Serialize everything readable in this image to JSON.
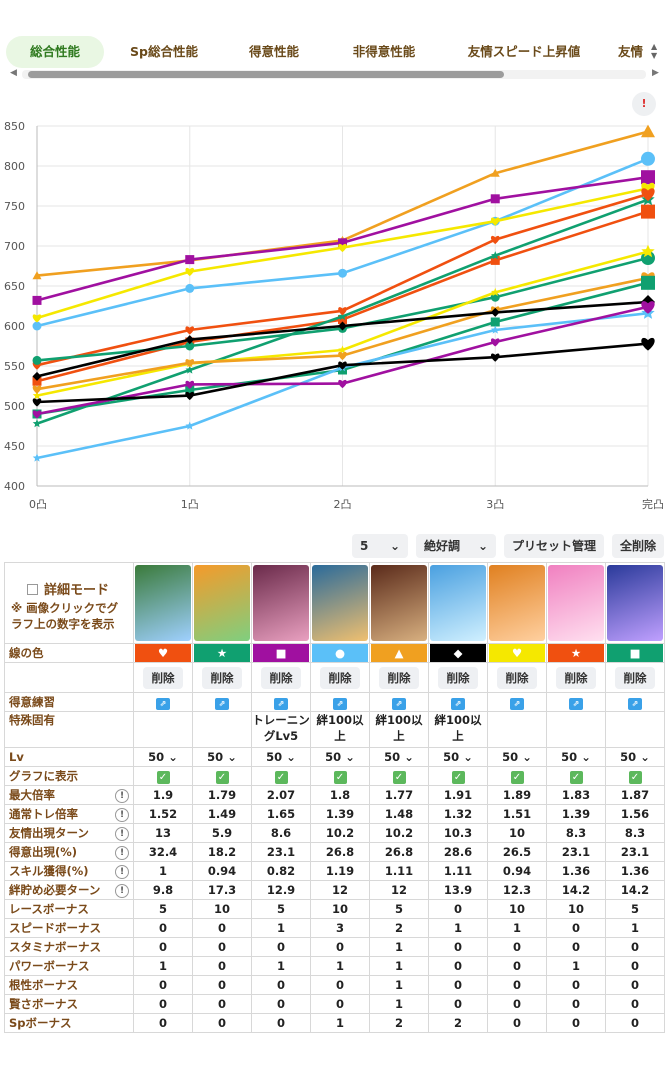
{
  "tabs": [
    "総合性能",
    "Sp総合性能",
    "得意性能",
    "非得意性能",
    "友情スピード上昇値",
    "友情"
  ],
  "tabs_more_icon": "chevron-updown-icon",
  "info_button_label": "!",
  "chart_data": {
    "type": "line",
    "x": [
      "0凸",
      "1凸",
      "2凸",
      "3凸",
      "完凸"
    ],
    "ylim": [
      400,
      850
    ],
    "yticks": [
      400,
      450,
      500,
      550,
      600,
      650,
      700,
      750,
      800,
      850
    ],
    "grid": true,
    "series": [
      {
        "color": "#f0a020",
        "marker": "triangle",
        "values": [
          663,
          682,
          707,
          791,
          843
        ]
      },
      {
        "color": "#5bc0f8",
        "marker": "circle",
        "values": [
          600,
          647,
          666,
          731,
          809
        ]
      },
      {
        "color": "#a010a0",
        "marker": "square",
        "values": [
          632,
          683,
          704,
          759,
          786
        ]
      },
      {
        "color": "#f5e800",
        "marker": "heart",
        "values": [
          610,
          668,
          698,
          731,
          772
        ]
      },
      {
        "color": "#f05010",
        "marker": "square",
        "values": [
          531,
          580,
          608,
          682,
          743
        ]
      },
      {
        "color": "#10a070",
        "marker": "star",
        "values": [
          478,
          545,
          612,
          688,
          758
        ]
      },
      {
        "color": "#f05010",
        "marker": "heart",
        "values": [
          551,
          595,
          619,
          708,
          765
        ]
      },
      {
        "color": "#10a070",
        "marker": "circle",
        "values": [
          557,
          575,
          597,
          636,
          685
        ]
      },
      {
        "color": "#f5e800",
        "marker": "star",
        "values": [
          513,
          553,
          570,
          642,
          693
        ]
      },
      {
        "color": "#f0a020",
        "marker": "heart",
        "values": [
          521,
          554,
          563,
          620,
          660
        ]
      },
      {
        "color": "#10a070",
        "marker": "square",
        "values": [
          490,
          520,
          545,
          605,
          654
        ]
      },
      {
        "color": "#000000",
        "marker": "diamond",
        "values": [
          537,
          583,
          600,
          617,
          630
        ]
      },
      {
        "color": "#5bc0f8",
        "marker": "star",
        "values": [
          435,
          475,
          548,
          595,
          616
        ]
      },
      {
        "color": "#a010a0",
        "marker": "heart",
        "values": [
          490,
          527,
          528,
          580,
          624
        ]
      },
      {
        "color": "#000000",
        "marker": "heart",
        "values": [
          505,
          513,
          551,
          561,
          578
        ]
      }
    ]
  },
  "controls": {
    "count": "5",
    "mode": "絶好調",
    "preset": "プリセット管理",
    "delete_all": "全削除"
  },
  "table": {
    "mode_label": "詳細モード",
    "mode_note": "※ 画像クリックでグラフ上の数字を表示",
    "cards": [
      {
        "grad": [
          "#3a7a3a",
          "#9fd0ff"
        ]
      },
      {
        "grad": [
          "#f59a2a",
          "#7fcf7f"
        ]
      },
      {
        "grad": [
          "#6a2a4a",
          "#e9a0c0"
        ]
      },
      {
        "grad": [
          "#2a6a9a",
          "#f0c070"
        ]
      },
      {
        "grad": [
          "#5a2a1a",
          "#d8b080"
        ]
      },
      {
        "grad": [
          "#4aa0e0",
          "#d0f0ff"
        ]
      },
      {
        "grad": [
          "#e08020",
          "#ffd0a0"
        ]
      },
      {
        "grad": [
          "#f080c0",
          "#ffe0f0"
        ]
      },
      {
        "grad": [
          "#2a3a9a",
          "#c0a0ff"
        ]
      }
    ],
    "color_label": "線の色",
    "colors": [
      {
        "bg": "#f05010",
        "sym": "♥",
        "fg": "#ffffff",
        "icon": "heart-icon"
      },
      {
        "bg": "#10a070",
        "sym": "★",
        "fg": "#ffffff",
        "icon": "star-icon"
      },
      {
        "bg": "#a010a0",
        "sym": "■",
        "fg": "#ffffff",
        "icon": "square-icon"
      },
      {
        "bg": "#5bc0f8",
        "sym": "●",
        "fg": "#ffffff",
        "icon": "circle-icon"
      },
      {
        "bg": "#f0a020",
        "sym": "▲",
        "fg": "#ffffff",
        "icon": "triangle-icon"
      },
      {
        "bg": "#000000",
        "sym": "◆",
        "fg": "#ffffff",
        "icon": "diamond-icon"
      },
      {
        "bg": "#f5e800",
        "sym": "♥",
        "fg": "#ffffff",
        "icon": "heart-icon"
      },
      {
        "bg": "#f05010",
        "sym": "★",
        "fg": "#ffffff",
        "icon": "star-icon"
      },
      {
        "bg": "#10a070",
        "sym": "■",
        "fg": "#ffffff",
        "icon": "square-icon"
      }
    ],
    "delete_label": "削除",
    "skill_label": "得意練習",
    "unique_label": "特殊固有",
    "unique": [
      "",
      "",
      "トレーニングLv5",
      "絆100以上",
      "絆100以上",
      "絆100以上",
      "",
      "",
      ""
    ],
    "lv_label": "Lv",
    "lv": [
      "50",
      "50",
      "50",
      "50",
      "50",
      "50",
      "50",
      "50",
      "50"
    ],
    "show_label": "グラフに表示",
    "rows": [
      {
        "label": "最大倍率",
        "info": true,
        "values": [
          "1.9",
          "1.79",
          "2.07",
          "1.8",
          "1.77",
          "1.91",
          "1.89",
          "1.83",
          "1.87"
        ]
      },
      {
        "label": "通常トレ倍率",
        "info": true,
        "values": [
          "1.52",
          "1.49",
          "1.65",
          "1.39",
          "1.48",
          "1.32",
          "1.51",
          "1.39",
          "1.56"
        ]
      },
      {
        "label": "友情出現ターン",
        "info": true,
        "values": [
          "13",
          "5.9",
          "8.6",
          "10.2",
          "10.2",
          "10.3",
          "10",
          "8.3",
          "8.3"
        ]
      },
      {
        "label": "得意出現(%)",
        "info": true,
        "values": [
          "32.4",
          "18.2",
          "23.1",
          "26.8",
          "26.8",
          "28.6",
          "26.5",
          "23.1",
          "23.1"
        ]
      },
      {
        "label": "スキル獲得(%)",
        "info": true,
        "values": [
          "1",
          "0.94",
          "0.82",
          "1.19",
          "1.11",
          "1.11",
          "0.94",
          "1.36",
          "1.36"
        ]
      },
      {
        "label": "絆貯め必要ターン",
        "info": true,
        "values": [
          "9.8",
          "17.3",
          "12.9",
          "12",
          "12",
          "13.9",
          "12.3",
          "14.2",
          "14.2"
        ]
      },
      {
        "label": "レースボーナス",
        "info": false,
        "values": [
          "5",
          "10",
          "5",
          "10",
          "5",
          "0",
          "10",
          "10",
          "5"
        ]
      },
      {
        "label": "スピードボーナス",
        "info": false,
        "values": [
          "0",
          "0",
          "1",
          "3",
          "2",
          "1",
          "1",
          "0",
          "1"
        ]
      },
      {
        "label": "スタミナボーナス",
        "info": false,
        "values": [
          "0",
          "0",
          "0",
          "0",
          "1",
          "0",
          "0",
          "0",
          "0"
        ]
      },
      {
        "label": "パワーボーナス",
        "info": false,
        "values": [
          "1",
          "0",
          "1",
          "1",
          "1",
          "0",
          "0",
          "1",
          "0"
        ]
      },
      {
        "label": "根性ボーナス",
        "info": false,
        "values": [
          "0",
          "0",
          "0",
          "0",
          "1",
          "0",
          "0",
          "0",
          "0"
        ]
      },
      {
        "label": "賢さボーナス",
        "info": false,
        "values": [
          "0",
          "0",
          "0",
          "0",
          "1",
          "0",
          "0",
          "0",
          "0"
        ]
      },
      {
        "label": "Spボーナス",
        "info": false,
        "values": [
          "0",
          "0",
          "0",
          "1",
          "2",
          "2",
          "0",
          "0",
          "0"
        ]
      }
    ]
  }
}
